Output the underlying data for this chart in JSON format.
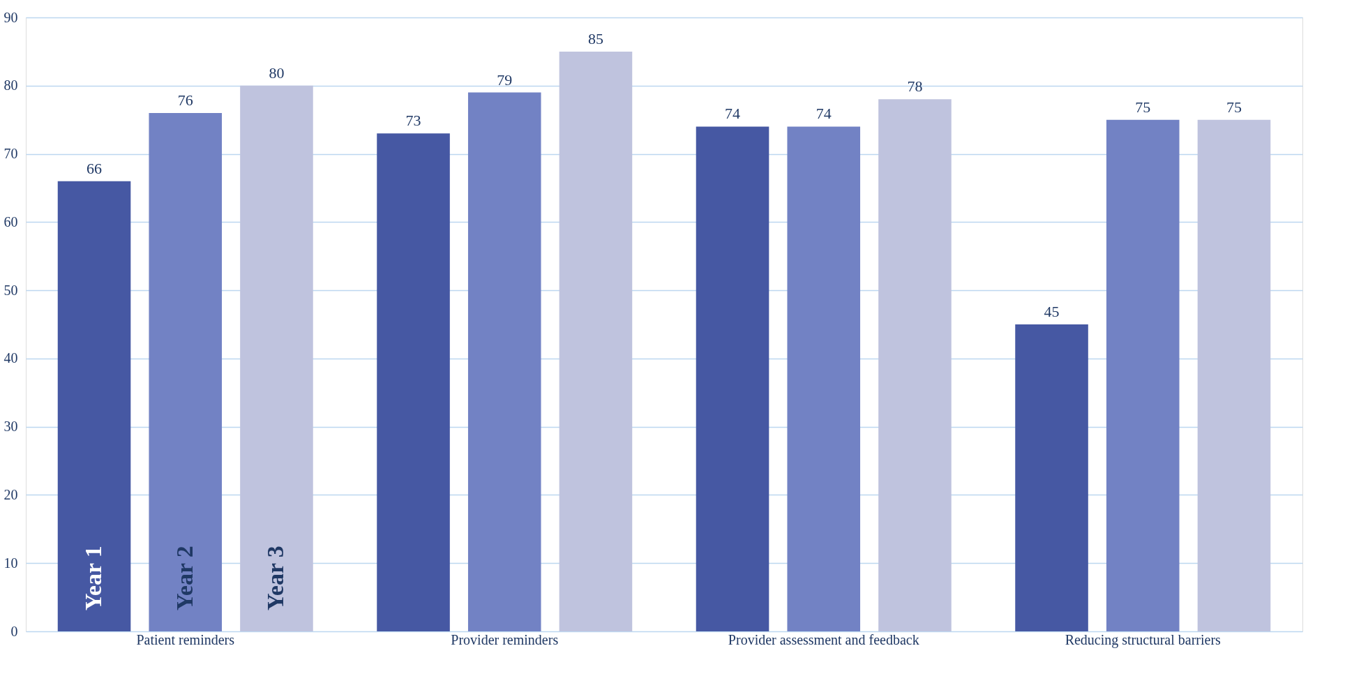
{
  "chart_data": {
    "type": "bar",
    "categories": [
      "Patient reminders",
      "Provider reminders",
      "Provider assessment and feedback",
      "Reducing structural barriers"
    ],
    "series": [
      {
        "name": "Year 1",
        "color": "#4658a3",
        "values": [
          66,
          73,
          74,
          45
        ]
      },
      {
        "name": "Year 2",
        "color": "#7282c4",
        "values": [
          76,
          79,
          74,
          75
        ]
      },
      {
        "name": "Year 3",
        "color": "#bfc3de",
        "values": [
          80,
          85,
          78,
          75
        ]
      }
    ],
    "ylim": [
      0,
      90
    ],
    "yticks": [
      0,
      10,
      20,
      30,
      40,
      50,
      60,
      70,
      80,
      90
    ],
    "grid": "y",
    "data_labels": true,
    "legend": false
  }
}
